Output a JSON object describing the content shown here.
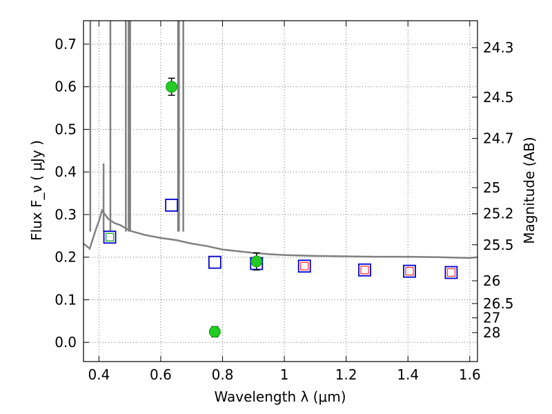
{
  "chart_data": {
    "type": "scatter",
    "xlabel": "Wavelength  λ (μm)",
    "ylabel": "Flux  F_ν  ( μJy )",
    "y2label": "Magnitude (AB)",
    "xlim": [
      0.35,
      1.625
    ],
    "ylim": [
      -0.045,
      0.755
    ],
    "grid": true,
    "x_ticks": [
      0.4,
      0.6,
      0.8,
      1.0,
      1.2,
      1.4,
      1.6
    ],
    "x_tick_labels": [
      "0.4",
      "0.6",
      "0.8",
      "1",
      "1.2",
      "1.4",
      "1.6"
    ],
    "y_ticks": [
      0.0,
      0.1,
      0.2,
      0.3,
      0.4,
      0.5,
      0.6,
      0.7
    ],
    "y_tick_labels": [
      "0.0",
      "0.1",
      "0.2",
      "0.3",
      "0.4",
      "0.5",
      "0.6",
      "0.7"
    ],
    "mag_ticks": [
      "24.3",
      "24.5",
      "24.7",
      "25",
      "25.2",
      "25.5",
      "26",
      "26.5",
      "27",
      "28"
    ],
    "series": [
      {
        "kind": "template_spectrum",
        "color": "#808080",
        "x": [
          0.35,
          0.37,
          0.39,
          0.4,
          0.41,
          0.42,
          0.43,
          0.45,
          0.47,
          0.5,
          0.55,
          0.6,
          0.65,
          0.7,
          0.75,
          0.8,
          0.85,
          0.9,
          0.95,
          1.0,
          1.1,
          1.2,
          1.3,
          1.4,
          1.5,
          1.6,
          1.625
        ],
        "y": [
          0.232,
          0.22,
          0.265,
          0.285,
          0.31,
          0.3,
          0.29,
          0.28,
          0.275,
          0.262,
          0.252,
          0.245,
          0.24,
          0.232,
          0.226,
          0.218,
          0.214,
          0.21,
          0.207,
          0.205,
          0.203,
          0.202,
          0.201,
          0.201,
          0.2,
          0.198,
          0.2
        ]
      },
      {
        "kind": "emission_lines",
        "color": "#808080",
        "x": [
          0.372,
          0.415,
          0.437,
          0.487,
          0.496,
          0.501,
          0.656,
          0.659,
          0.673
        ],
        "y": [
          0.755,
          0.42,
          0.755,
          0.755,
          0.755,
          0.755,
          0.755,
          0.755,
          0.755
        ]
      },
      {
        "kind": "model_photometry",
        "marker": "open-square",
        "color": "#0000cc",
        "x": [
          0.435,
          0.635,
          0.775,
          0.91,
          1.065,
          1.26,
          1.405,
          1.54
        ],
        "y": [
          0.247,
          0.322,
          0.188,
          0.185,
          0.179,
          0.17,
          0.167,
          0.164
        ]
      },
      {
        "kind": "filter_photometry",
        "marker": "open-square",
        "color": "#ff4444",
        "x": [
          1.065,
          1.26,
          1.405,
          1.54
        ],
        "y": [
          0.179,
          0.17,
          0.167,
          0.164
        ]
      },
      {
        "kind": "filter_photometry",
        "marker": "open-square",
        "color": "#22aa22",
        "x": [
          0.435
        ],
        "y": [
          0.247
        ]
      },
      {
        "kind": "observed",
        "marker": "filled-circle",
        "color": "#22cc22",
        "x": [
          0.635,
          0.775,
          0.91
        ],
        "y": [
          0.6,
          0.025,
          0.19
        ],
        "yerr": [
          0.02,
          0.012,
          0.02
        ]
      }
    ]
  }
}
